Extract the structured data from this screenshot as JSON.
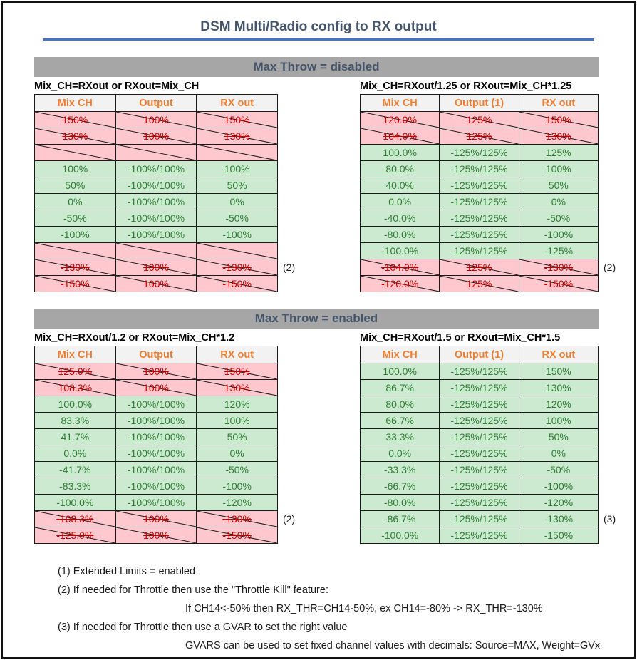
{
  "title": "DSM Multi/Radio config to RX output",
  "colors": {
    "accent_orange": "#ED7D31",
    "good_bg": "#CBEAD0",
    "good_text": "#2E7D33",
    "bad_bg": "#FFC7CE",
    "bad_text": "#C00000",
    "band_bg": "#A6A6A6",
    "heading_text": "#44546A",
    "rule_blue": "#4472C4"
  },
  "sections": [
    {
      "band": "Max Throw = disabled",
      "tables": [
        {
          "subtitle": "Mix_CH=RXout or RXout=Mix_CH",
          "headers": [
            "Mix CH",
            "Output",
            "RX out"
          ],
          "rows": [
            {
              "type": "bad",
              "cells": [
                "150%",
                "100%",
                "150%"
              ]
            },
            {
              "type": "bad",
              "cells": [
                "130%",
                "100%",
                "130%"
              ]
            },
            {
              "type": "bad",
              "cells": [
                "",
                "",
                ""
              ]
            },
            {
              "type": "good",
              "cells": [
                "100%",
                "-100%/100%",
                "100%"
              ]
            },
            {
              "type": "good",
              "cells": [
                "50%",
                "-100%/100%",
                "50%"
              ]
            },
            {
              "type": "good",
              "cells": [
                "0%",
                "-100%/100%",
                "0%"
              ]
            },
            {
              "type": "good",
              "cells": [
                "-50%",
                "-100%/100%",
                "-50%"
              ]
            },
            {
              "type": "good",
              "cells": [
                "-100%",
                "-100%/100%",
                "-100%"
              ]
            },
            {
              "type": "bad",
              "cells": [
                "",
                "",
                ""
              ]
            },
            {
              "type": "bad",
              "cells": [
                "-130%",
                "100%",
                "-130%"
              ],
              "note": "(2)"
            },
            {
              "type": "bad",
              "cells": [
                "-150%",
                "100%",
                "-150%"
              ]
            }
          ]
        },
        {
          "subtitle": "Mix_CH=RXout/1.25 or RXout=Mix_CH*1.25",
          "headers": [
            "Mix CH",
            "Output (1)",
            "RX out"
          ],
          "rows": [
            {
              "type": "bad",
              "cells": [
                "120.0%",
                "125%",
                "150%"
              ]
            },
            {
              "type": "bad",
              "cells": [
                "104.0%",
                "125%",
                "130%"
              ]
            },
            {
              "type": "good",
              "cells": [
                "100.0%",
                "-125%/125%",
                "125%"
              ]
            },
            {
              "type": "good",
              "cells": [
                "80.0%",
                "-125%/125%",
                "100%"
              ]
            },
            {
              "type": "good",
              "cells": [
                "40.0%",
                "-125%/125%",
                "50%"
              ]
            },
            {
              "type": "good",
              "cells": [
                "0.0%",
                "-125%/125%",
                "0%"
              ]
            },
            {
              "type": "good",
              "cells": [
                "-40.0%",
                "-125%/125%",
                "-50%"
              ]
            },
            {
              "type": "good",
              "cells": [
                "-80.0%",
                "-125%/125%",
                "-100%"
              ]
            },
            {
              "type": "good",
              "cells": [
                "-100.0%",
                "-125%/125%",
                "-125%"
              ]
            },
            {
              "type": "bad",
              "cells": [
                "-104.0%",
                "125%",
                "-130%"
              ],
              "note": "(2)"
            },
            {
              "type": "bad",
              "cells": [
                "-120.0%",
                "125%",
                "-150%"
              ]
            }
          ]
        }
      ]
    },
    {
      "band": "Max Throw = enabled",
      "tables": [
        {
          "subtitle": "Mix_CH=RXout/1.2 or RXout=Mix_CH*1.2",
          "headers": [
            "Mix CH",
            "Output",
            "RX out"
          ],
          "rows": [
            {
              "type": "bad",
              "cells": [
                "125.0%",
                "100%",
                "150%"
              ]
            },
            {
              "type": "bad",
              "cells": [
                "108.3%",
                "100%",
                "130%"
              ]
            },
            {
              "type": "good",
              "cells": [
                "100.0%",
                "-100%/100%",
                "120%"
              ]
            },
            {
              "type": "good",
              "cells": [
                "83.3%",
                "-100%/100%",
                "100%"
              ]
            },
            {
              "type": "good",
              "cells": [
                "41.7%",
                "-100%/100%",
                "50%"
              ]
            },
            {
              "type": "good",
              "cells": [
                "0.0%",
                "-100%/100%",
                "0%"
              ]
            },
            {
              "type": "good",
              "cells": [
                "-41.7%",
                "-100%/100%",
                "-50%"
              ]
            },
            {
              "type": "good",
              "cells": [
                "-83.3%",
                "-100%/100%",
                "-100%"
              ]
            },
            {
              "type": "good",
              "cells": [
                "-100.0%",
                "-100%/100%",
                "-120%"
              ]
            },
            {
              "type": "bad",
              "cells": [
                "-108.3%",
                "100%",
                "-130%"
              ],
              "note": "(2)"
            },
            {
              "type": "bad",
              "cells": [
                "-125.0%",
                "100%",
                "-150%"
              ]
            }
          ]
        },
        {
          "subtitle": "Mix_CH=RXout/1.5 or RXout=Mix_CH*1.5",
          "headers": [
            "Mix CH",
            "Output (1)",
            "RX out"
          ],
          "rows": [
            {
              "type": "good",
              "cells": [
                "100.0%",
                "-125%/125%",
                "150%"
              ]
            },
            {
              "type": "good",
              "cells": [
                "86.7%",
                "-125%/125%",
                "130%"
              ]
            },
            {
              "type": "good",
              "cells": [
                "80.0%",
                "-125%/125%",
                "120%"
              ]
            },
            {
              "type": "good",
              "cells": [
                "66.7%",
                "-125%/125%",
                "100%"
              ]
            },
            {
              "type": "good",
              "cells": [
                "33.3%",
                "-125%/125%",
                "50%"
              ]
            },
            {
              "type": "good",
              "cells": [
                "0.0%",
                "-125%/125%",
                "0%"
              ]
            },
            {
              "type": "good",
              "cells": [
                "-33.3%",
                "-125%/125%",
                "-50%"
              ]
            },
            {
              "type": "good",
              "cells": [
                "-66.7%",
                "-125%/125%",
                "-100%"
              ]
            },
            {
              "type": "good",
              "cells": [
                "-80.0%",
                "-125%/125%",
                "-120%"
              ]
            },
            {
              "type": "good",
              "cells": [
                "-86.7%",
                "-125%/125%",
                "-130%"
              ],
              "note": "(3)"
            },
            {
              "type": "good",
              "cells": [
                "-100.0%",
                "-125%/125%",
                "-150%"
              ]
            }
          ]
        }
      ]
    }
  ],
  "footnotes": [
    "(1) Extended Limits = enabled",
    "(2) If needed for Throttle then use the \"Throttle Kill\" feature:",
    "If CH14<-50% then RX_THR=CH14-50%, ex CH14=-80% -> RX_THR=-130%",
    "(3) If needed for Throttle then use a GVAR to set the right value",
    "GVARS can be used to set fixed channel values with decimals: Source=MAX, Weight=GVx"
  ]
}
